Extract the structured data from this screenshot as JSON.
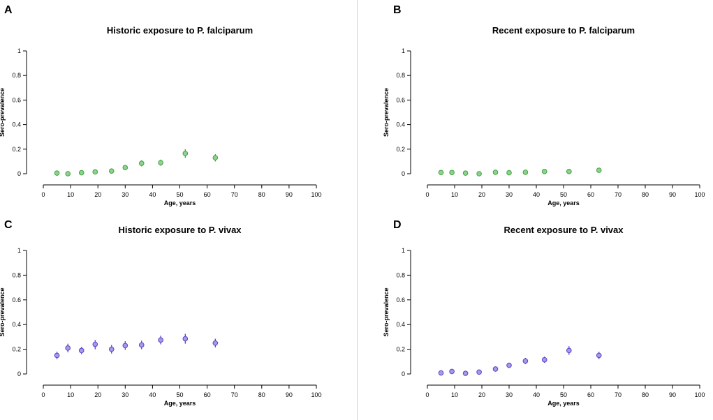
{
  "colors": {
    "green_fill": "#8fd18f",
    "green_stroke": "#3ea33e",
    "purple_fill": "#a59ae6",
    "purple_stroke": "#5a3fcf",
    "axis": "#000000"
  },
  "chart_data": [
    {
      "panel": "A",
      "type": "scatter",
      "title": "Historic exposure to P. falciparum",
      "xlabel": "Age, years",
      "ylabel": "Sero-prevalence",
      "xlim": [
        0,
        100
      ],
      "ylim": [
        0,
        1
      ],
      "xticks": [
        "0",
        "10",
        "20",
        "30",
        "40",
        "50",
        "60",
        "70",
        "80",
        "90",
        "100"
      ],
      "yticks": [
        "0",
        "0.2",
        "0.4",
        "0.6",
        "0.8",
        "1"
      ],
      "color": "green",
      "points": [
        {
          "x": 5,
          "y": 0.005,
          "lo": 0.0,
          "hi": 0.012
        },
        {
          "x": 9,
          "y": 0.0,
          "lo": 0.0,
          "hi": 0.008
        },
        {
          "x": 14,
          "y": 0.008,
          "lo": 0.0,
          "hi": 0.018
        },
        {
          "x": 19,
          "y": 0.015,
          "lo": 0.003,
          "hi": 0.028
        },
        {
          "x": 25,
          "y": 0.022,
          "lo": 0.008,
          "hi": 0.036
        },
        {
          "x": 30,
          "y": 0.05,
          "lo": 0.03,
          "hi": 0.07
        },
        {
          "x": 36,
          "y": 0.085,
          "lo": 0.06,
          "hi": 0.11
        },
        {
          "x": 43,
          "y": 0.09,
          "lo": 0.065,
          "hi": 0.115
        },
        {
          "x": 52,
          "y": 0.165,
          "lo": 0.13,
          "hi": 0.2
        },
        {
          "x": 63,
          "y": 0.13,
          "lo": 0.1,
          "hi": 0.16
        }
      ]
    },
    {
      "panel": "B",
      "type": "scatter",
      "title": "Recent exposure to P. falciparum",
      "xlabel": "Age, years",
      "ylabel": "Sero-prevalence",
      "xlim": [
        0,
        100
      ],
      "ylim": [
        0,
        1
      ],
      "xticks": [
        "0",
        "10",
        "20",
        "30",
        "40",
        "50",
        "60",
        "70",
        "80",
        "90",
        "100"
      ],
      "yticks": [
        "0",
        "0.2",
        "0.4",
        "0.6",
        "0.8",
        "1"
      ],
      "color": "green",
      "points": [
        {
          "x": 5,
          "y": 0.01,
          "lo": 0.002,
          "hi": 0.018
        },
        {
          "x": 9,
          "y": 0.01,
          "lo": 0.002,
          "hi": 0.018
        },
        {
          "x": 14,
          "y": 0.005,
          "lo": 0.0,
          "hi": 0.012
        },
        {
          "x": 19,
          "y": 0.0,
          "lo": 0.0,
          "hi": 0.007
        },
        {
          "x": 25,
          "y": 0.012,
          "lo": 0.003,
          "hi": 0.021
        },
        {
          "x": 30,
          "y": 0.008,
          "lo": 0.0,
          "hi": 0.016
        },
        {
          "x": 36,
          "y": 0.012,
          "lo": 0.003,
          "hi": 0.021
        },
        {
          "x": 43,
          "y": 0.018,
          "lo": 0.008,
          "hi": 0.028
        },
        {
          "x": 52,
          "y": 0.018,
          "lo": 0.008,
          "hi": 0.028
        },
        {
          "x": 63,
          "y": 0.028,
          "lo": 0.015,
          "hi": 0.041
        }
      ]
    },
    {
      "panel": "C",
      "type": "scatter",
      "title": "Historic exposure to P. vivax",
      "xlabel": "Age, years",
      "ylabel": "Sero-prevalence",
      "xlim": [
        0,
        100
      ],
      "ylim": [
        0,
        1
      ],
      "xticks": [
        "0",
        "10",
        "20",
        "30",
        "40",
        "50",
        "60",
        "70",
        "80",
        "90",
        "100"
      ],
      "yticks": [
        "0",
        "0.2",
        "0.4",
        "0.6",
        "0.8",
        "1"
      ],
      "color": "purple",
      "points": [
        {
          "x": 5,
          "y": 0.15,
          "lo": 0.12,
          "hi": 0.18
        },
        {
          "x": 9,
          "y": 0.21,
          "lo": 0.175,
          "hi": 0.245
        },
        {
          "x": 14,
          "y": 0.19,
          "lo": 0.16,
          "hi": 0.22
        },
        {
          "x": 19,
          "y": 0.24,
          "lo": 0.2,
          "hi": 0.275
        },
        {
          "x": 25,
          "y": 0.2,
          "lo": 0.165,
          "hi": 0.235
        },
        {
          "x": 30,
          "y": 0.23,
          "lo": 0.195,
          "hi": 0.265
        },
        {
          "x": 36,
          "y": 0.235,
          "lo": 0.2,
          "hi": 0.27
        },
        {
          "x": 43,
          "y": 0.275,
          "lo": 0.24,
          "hi": 0.31
        },
        {
          "x": 52,
          "y": 0.285,
          "lo": 0.245,
          "hi": 0.325
        },
        {
          "x": 63,
          "y": 0.25,
          "lo": 0.215,
          "hi": 0.285
        }
      ]
    },
    {
      "panel": "D",
      "type": "scatter",
      "title": "Recent exposure to P. vivax",
      "xlabel": "Age, years",
      "ylabel": "Sero-prevalence",
      "xlim": [
        0,
        100
      ],
      "ylim": [
        0,
        1
      ],
      "xticks": [
        "0",
        "10",
        "20",
        "30",
        "40",
        "50",
        "60",
        "70",
        "80",
        "90",
        "100"
      ],
      "yticks": [
        "0",
        "0.2",
        "0.4",
        "0.6",
        "0.8",
        "1"
      ],
      "color": "purple",
      "points": [
        {
          "x": 5,
          "y": 0.008,
          "lo": 0.0,
          "hi": 0.018
        },
        {
          "x": 9,
          "y": 0.02,
          "lo": 0.008,
          "hi": 0.032
        },
        {
          "x": 14,
          "y": 0.005,
          "lo": 0.0,
          "hi": 0.014
        },
        {
          "x": 19,
          "y": 0.015,
          "lo": 0.004,
          "hi": 0.026
        },
        {
          "x": 25,
          "y": 0.04,
          "lo": 0.025,
          "hi": 0.055
        },
        {
          "x": 30,
          "y": 0.07,
          "lo": 0.05,
          "hi": 0.09
        },
        {
          "x": 36,
          "y": 0.105,
          "lo": 0.08,
          "hi": 0.13
        },
        {
          "x": 43,
          "y": 0.115,
          "lo": 0.09,
          "hi": 0.14
        },
        {
          "x": 52,
          "y": 0.19,
          "lo": 0.155,
          "hi": 0.225
        },
        {
          "x": 63,
          "y": 0.15,
          "lo": 0.12,
          "hi": 0.18
        }
      ]
    }
  ]
}
